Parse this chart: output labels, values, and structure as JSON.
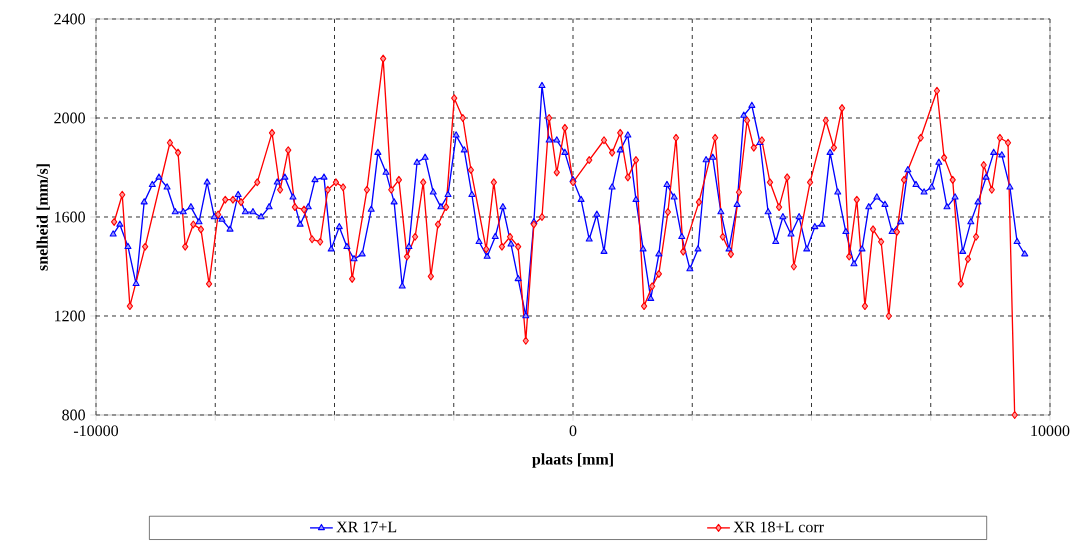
{
  "chart_data": {
    "type": "line",
    "xlabel": "plaats  [mm]",
    "ylabel": "snelheid  [mm/s]",
    "xlim": [
      -10000,
      10000
    ],
    "xticks": [
      -10000,
      {
        "value": -7500,
        "label": null
      },
      {
        "value": -5000,
        "label": null
      },
      {
        "value": -2500,
        "label": null
      },
      0,
      {
        "value": 2500,
        "label": null
      },
      {
        "value": 5000,
        "label": null
      },
      {
        "value": 7500,
        "label": null
      },
      10000
    ],
    "ylim": [
      800,
      2400
    ],
    "yticks": [
      800,
      1200,
      1600,
      2000,
      2400
    ],
    "grid": true,
    "legend": "bottom",
    "line_style": "solid",
    "series": [
      {
        "name": "XR 17+L",
        "color": "#0000ff",
        "marker": "triangle",
        "x": [
          -9640,
          -9500,
          -9330,
          -9160,
          -8990,
          -8820,
          -8680,
          -8510,
          -8340,
          -8170,
          -8010,
          -7840,
          -7670,
          -7520,
          -7360,
          -7190,
          -7020,
          -6870,
          -6710,
          -6540,
          -6370,
          -6200,
          -6040,
          -5870,
          -5720,
          -5550,
          -5410,
          -5220,
          -5070,
          -4900,
          -4740,
          -4590,
          -4420,
          -4230,
          -4090,
          -3920,
          -3750,
          -3580,
          -3440,
          -3270,
          -3100,
          -2930,
          -2770,
          -2620,
          -2450,
          -2280,
          -2120,
          -1970,
          -1800,
          -1630,
          -1470,
          -1300,
          -1150,
          -990,
          -820,
          -650,
          -500,
          -340,
          -170,
          0,
          170,
          340,
          500,
          650,
          820,
          990,
          1150,
          1320,
          1470,
          1630,
          1800,
          1970,
          2120,
          2280,
          2450,
          2620,
          2790,
          2930,
          3100,
          3270,
          3440,
          3580,
          3750,
          3920,
          4090,
          4250,
          4400,
          4570,
          4740,
          4900,
          5070,
          5220,
          5390,
          5550,
          5720,
          5890,
          6060,
          6200,
          6370,
          6540,
          6690,
          6870,
          7020,
          7190,
          7360,
          7520,
          7670,
          7840,
          8010,
          8170,
          8340,
          8490,
          8660,
          8820,
          8990,
          9160,
          9310,
          9470
        ],
        "values": [
          1530,
          1570,
          1480,
          1330,
          1660,
          1730,
          1760,
          1720,
          1620,
          1620,
          1640,
          1580,
          1740,
          1600,
          1590,
          1550,
          1690,
          1620,
          1620,
          1600,
          1640,
          1740,
          1760,
          1680,
          1570,
          1640,
          1750,
          1760,
          1470,
          1560,
          1480,
          1430,
          1450,
          1630,
          1860,
          1780,
          1660,
          1320,
          1480,
          1820,
          1840,
          1700,
          1640,
          1690,
          1930,
          1870,
          1690,
          1500,
          1440,
          1520,
          1640,
          1490,
          1350,
          1200,
          1580,
          2130,
          1910,
          1910,
          1860,
          1750,
          1670,
          1510,
          1610,
          1460,
          1720,
          1870,
          1930,
          1670,
          1470,
          1270,
          1450,
          1730,
          1680,
          1520,
          1390,
          1470,
          1830,
          1840,
          1620,
          1470,
          1650,
          2010,
          2050,
          1900,
          1620,
          1500,
          1600,
          1530,
          1600,
          1470,
          1560,
          1570,
          1860,
          1700,
          1540,
          1410,
          1470,
          1640,
          1680,
          1650,
          1540,
          1580,
          1790,
          1730,
          1700,
          1720,
          1820,
          1640,
          1680,
          1460,
          1580,
          1660,
          1760,
          1860,
          1850,
          1720,
          1500,
          1450
        ]
      },
      {
        "name": "XR 18+L corr",
        "color": "#ff0000",
        "marker": "diamond",
        "x": [
          -9620,
          -9450,
          -9290,
          -8970,
          -8450,
          -8280,
          -8130,
          -7960,
          -7800,
          -7630,
          -7440,
          -7290,
          -7130,
          -6960,
          -6620,
          -6310,
          -6140,
          -5970,
          -5830,
          -5640,
          -5470,
          -5300,
          -5140,
          -4970,
          -4820,
          -4630,
          -4320,
          -3980,
          -3810,
          -3650,
          -3480,
          -3310,
          -3140,
          -2980,
          -2830,
          -2660,
          -2490,
          -2310,
          -2140,
          -1820,
          -1660,
          -1490,
          -1320,
          -1150,
          -990,
          -820,
          -650,
          -500,
          -340,
          -170,
          0,
          340,
          650,
          820,
          990,
          1150,
          1320,
          1490,
          1660,
          1800,
          1990,
          2160,
          2310,
          2640,
          2980,
          3140,
          3310,
          3480,
          3650,
          3790,
          3960,
          4130,
          4320,
          4490,
          4630,
          4970,
          5300,
          5470,
          5640,
          5790,
          5950,
          6120,
          6290,
          6460,
          6620,
          6790,
          6940,
          7290,
          7630,
          7780,
          7960,
          8130,
          8280,
          8450,
          8610,
          8780,
          8950,
          9120,
          9260
        ],
        "values": [
          1580,
          1690,
          1240,
          1480,
          1900,
          1860,
          1480,
          1570,
          1550,
          1330,
          1610,
          1670,
          1670,
          1660,
          1740,
          1940,
          1710,
          1870,
          1640,
          1630,
          1510,
          1500,
          1710,
          1740,
          1720,
          1350,
          1710,
          2240,
          1710,
          1750,
          1440,
          1520,
          1740,
          1360,
          1570,
          1640,
          2080,
          2000,
          1790,
          1470,
          1740,
          1480,
          1520,
          1480,
          1100,
          1570,
          1600,
          2000,
          1780,
          1960,
          1740,
          1830,
          1910,
          1860,
          1940,
          1760,
          1830,
          1240,
          1320,
          1370,
          1620,
          1920,
          1460,
          1660,
          1920,
          1520,
          1450,
          1700,
          1990,
          1880,
          1910,
          1740,
          1640,
          1760,
          1400,
          1740,
          1990,
          1880,
          2040,
          1440,
          1670,
          1240,
          1550,
          1500,
          1200,
          1540,
          1750,
          1920,
          2110,
          1840,
          1750,
          1330,
          1430,
          1520,
          1810,
          1710,
          1920,
          1900,
          800
        ]
      }
    ]
  }
}
